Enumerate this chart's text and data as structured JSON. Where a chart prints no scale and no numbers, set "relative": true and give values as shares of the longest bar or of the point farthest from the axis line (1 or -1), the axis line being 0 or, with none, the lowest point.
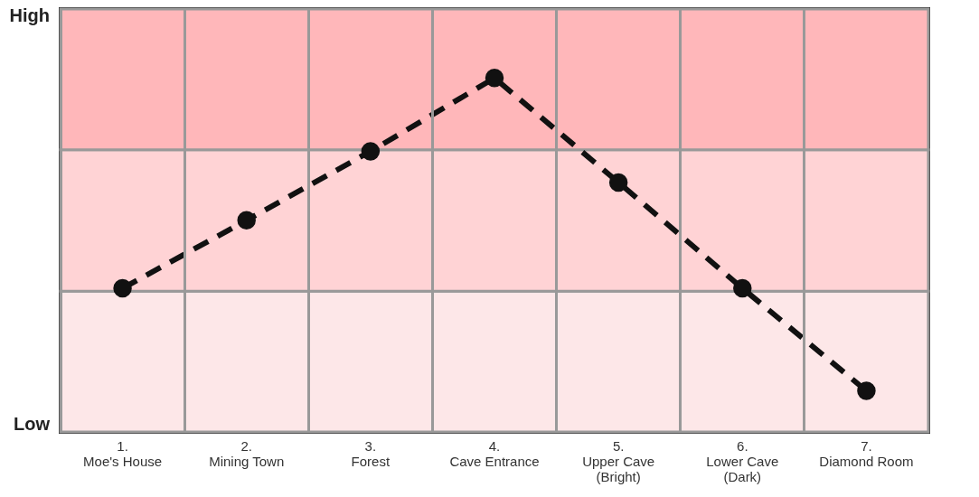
{
  "chart_data": {
    "type": "line",
    "categories": [
      "1.\nMoe's House",
      "2.\nMining Town",
      "3.\nForest",
      "4.\nCave Entrance",
      "5.\nUpper Cave\n(Bright)",
      "6.\nLower Cave\n(Dark)",
      "7.\nDiamond Room"
    ],
    "values": [
      0.406,
      0.598,
      0.793,
      1,
      0.705,
      0.406,
      0.116
    ],
    "relative": true,
    "color": "#111111",
    "annotations": [
      "High",
      "Low"
    ],
    "bands": [
      {
        "axis": "y",
        "from": 0,
        "to": 0.398,
        "color": "#fde7e8"
      },
      {
        "axis": "y",
        "from": 0.398,
        "to": 0.797,
        "color": "#ffd3d5"
      },
      {
        "axis": "y",
        "from": 0.797,
        "to": 1.195,
        "color": "#ffb7ba"
      }
    ],
    "grid": "x",
    "marker": "circle",
    "line_style": "dashed"
  }
}
